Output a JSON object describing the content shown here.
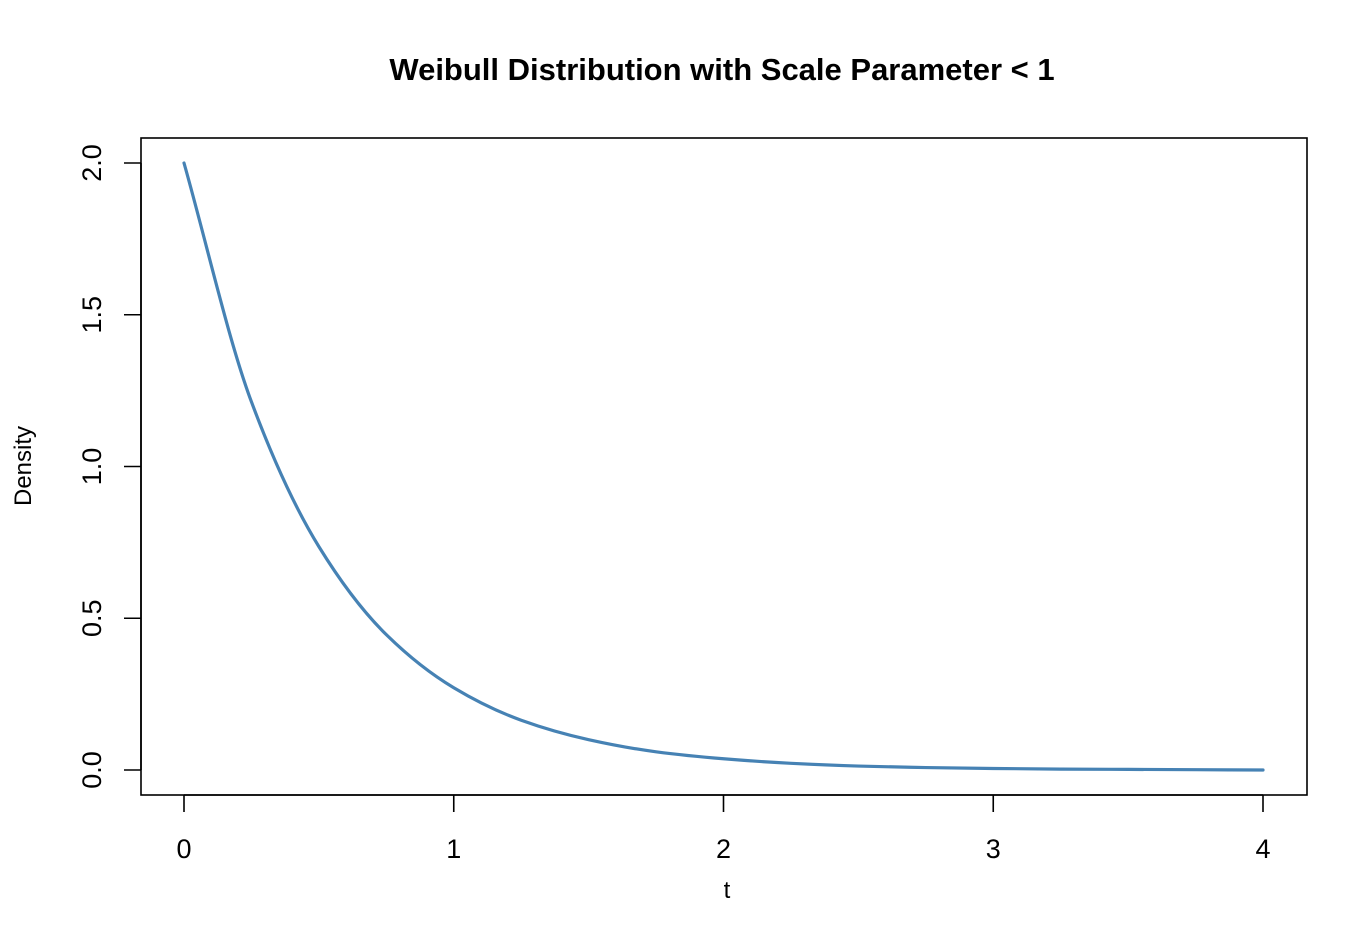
{
  "chart_data": {
    "type": "line",
    "title": "Weibull Distribution with Scale Parameter < 1",
    "xlabel": "t",
    "ylabel": "Density",
    "xlim": [
      0,
      4
    ],
    "ylim": [
      0,
      2
    ],
    "x_ticks": [
      "0",
      "1",
      "2",
      "3",
      "4"
    ],
    "y_ticks": [
      "0.0",
      "0.5",
      "1.0",
      "1.5",
      "2.0"
    ],
    "grid": false,
    "line_color": "#4682B4",
    "x": [
      0,
      0.25,
      0.5,
      0.75,
      1.0,
      1.25,
      1.5,
      1.75,
      2.0,
      2.25,
      2.5,
      2.75,
      3.0,
      3.25,
      3.5,
      3.75,
      4.0
    ],
    "y": [
      2.0,
      1.213,
      0.736,
      0.446,
      0.271,
      0.164,
      0.1,
      0.06,
      0.037,
      0.022,
      0.013,
      0.008,
      0.005,
      0.003,
      0.002,
      0.001,
      0.0
    ]
  }
}
